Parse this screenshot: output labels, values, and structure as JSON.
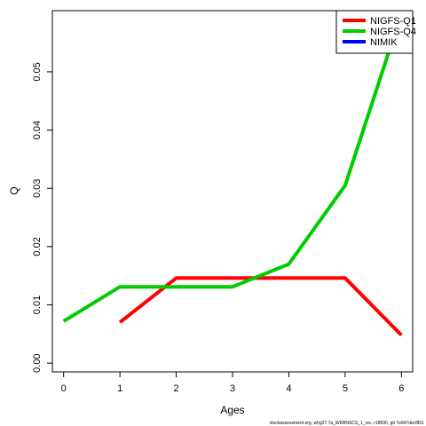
{
  "chart_data": {
    "type": "line",
    "xlabel": "Ages",
    "ylabel": "Q",
    "xlim": [
      -0.2,
      6.2
    ],
    "ylim": [
      -0.0015,
      0.0605
    ],
    "x_ticks": [
      0,
      1,
      2,
      3,
      4,
      5,
      6
    ],
    "y_ticks": [
      0.0,
      0.01,
      0.02,
      0.03,
      0.04,
      0.05
    ],
    "y_tick_labels": [
      "0.00",
      "0.01",
      "0.02",
      "0.03",
      "0.04",
      "0.05"
    ],
    "legend_position": "top-right",
    "series": [
      {
        "name": "NIGFS-Q1",
        "color": "#ff0000",
        "x": [
          1,
          2,
          3,
          4,
          5,
          6
        ],
        "y": [
          0.007,
          0.0146,
          0.0146,
          0.0146,
          0.0146,
          0.0048
        ]
      },
      {
        "name": "NIGFS-Q4",
        "color": "#00cc00",
        "x": [
          0,
          1,
          2,
          3,
          4,
          5,
          6
        ],
        "y": [
          0.0072,
          0.0131,
          0.0131,
          0.0131,
          0.017,
          0.0305,
          0.06
        ]
      },
      {
        "name": "NIMIK",
        "color": "#0000ff",
        "x": [],
        "y": []
      }
    ]
  },
  "footer": "stockassessment.org, whg27.7a_WKBNSCS_1_rec, r18590, git 7e947decf851"
}
